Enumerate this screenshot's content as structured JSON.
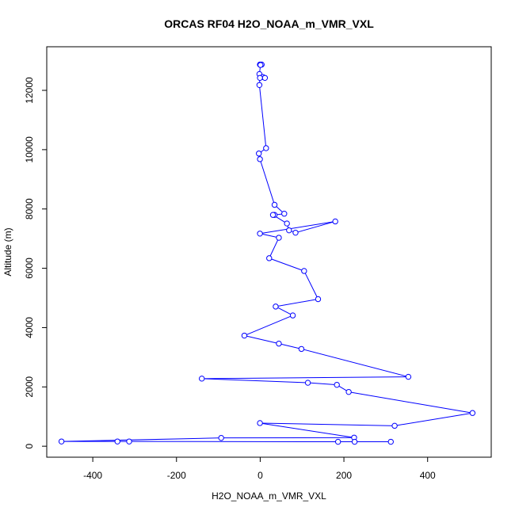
{
  "chart_data": {
    "type": "scatter",
    "title": "ORCAS RF04 H2O_NOAA_m_VMR_VXL",
    "xlabel": "H2O_NOAA_m_VMR_VXL",
    "ylabel": "Altitude (m)",
    "xlim": [
      -510,
      552
    ],
    "ylim": [
      -370,
      13470
    ],
    "xticks": [
      -400,
      -200,
      0,
      200,
      400
    ],
    "yticks": [
      0,
      2000,
      4000,
      6000,
      8000,
      10000,
      12000
    ],
    "grid": false,
    "series_color": "#0000ff",
    "connect_points": true,
    "series": [
      {
        "points": [
          [
            -0.6,
            12870
          ],
          [
            3.5,
            12870
          ],
          [
            0.7,
            12855
          ],
          [
            -1.9,
            12550
          ],
          [
            6.1,
            12450
          ],
          [
            11.3,
            12420
          ],
          [
            -0.6,
            12420
          ],
          [
            -1.9,
            12180
          ],
          [
            14.0,
            10050
          ],
          [
            -3.2,
            9870
          ],
          [
            -0.6,
            9680
          ],
          [
            34.3,
            8140
          ],
          [
            57.5,
            7840
          ],
          [
            34.3,
            7800
          ],
          [
            30.5,
            7800
          ],
          [
            63.9,
            7510
          ],
          [
            68.9,
            7280
          ],
          [
            84.4,
            7200
          ],
          [
            179.4,
            7580
          ],
          [
            -0.6,
            7170
          ],
          [
            44.6,
            7030
          ],
          [
            21.5,
            6340
          ],
          [
            104.9,
            5910
          ],
          [
            138.3,
            4960
          ],
          [
            37.0,
            4710
          ],
          [
            77.9,
            4410
          ],
          [
            -37.8,
            3730
          ],
          [
            44.6,
            3460
          ],
          [
            98.5,
            3280
          ],
          [
            354.0,
            2340
          ],
          [
            -139.5,
            2280
          ],
          [
            113.9,
            2140
          ],
          [
            183.2,
            2070
          ],
          [
            211.5,
            1830
          ],
          [
            507.3,
            1120
          ],
          [
            321.2,
            690
          ],
          [
            -0.6,
            780
          ],
          [
            224.4,
            290
          ],
          [
            -93.2,
            280
          ],
          [
            -474.8,
            160
          ],
          [
            -341.1,
            160
          ],
          [
            -313.1,
            160
          ],
          [
            186.0,
            150
          ],
          [
            225.6,
            150
          ],
          [
            312.1,
            150
          ]
        ]
      }
    ]
  }
}
